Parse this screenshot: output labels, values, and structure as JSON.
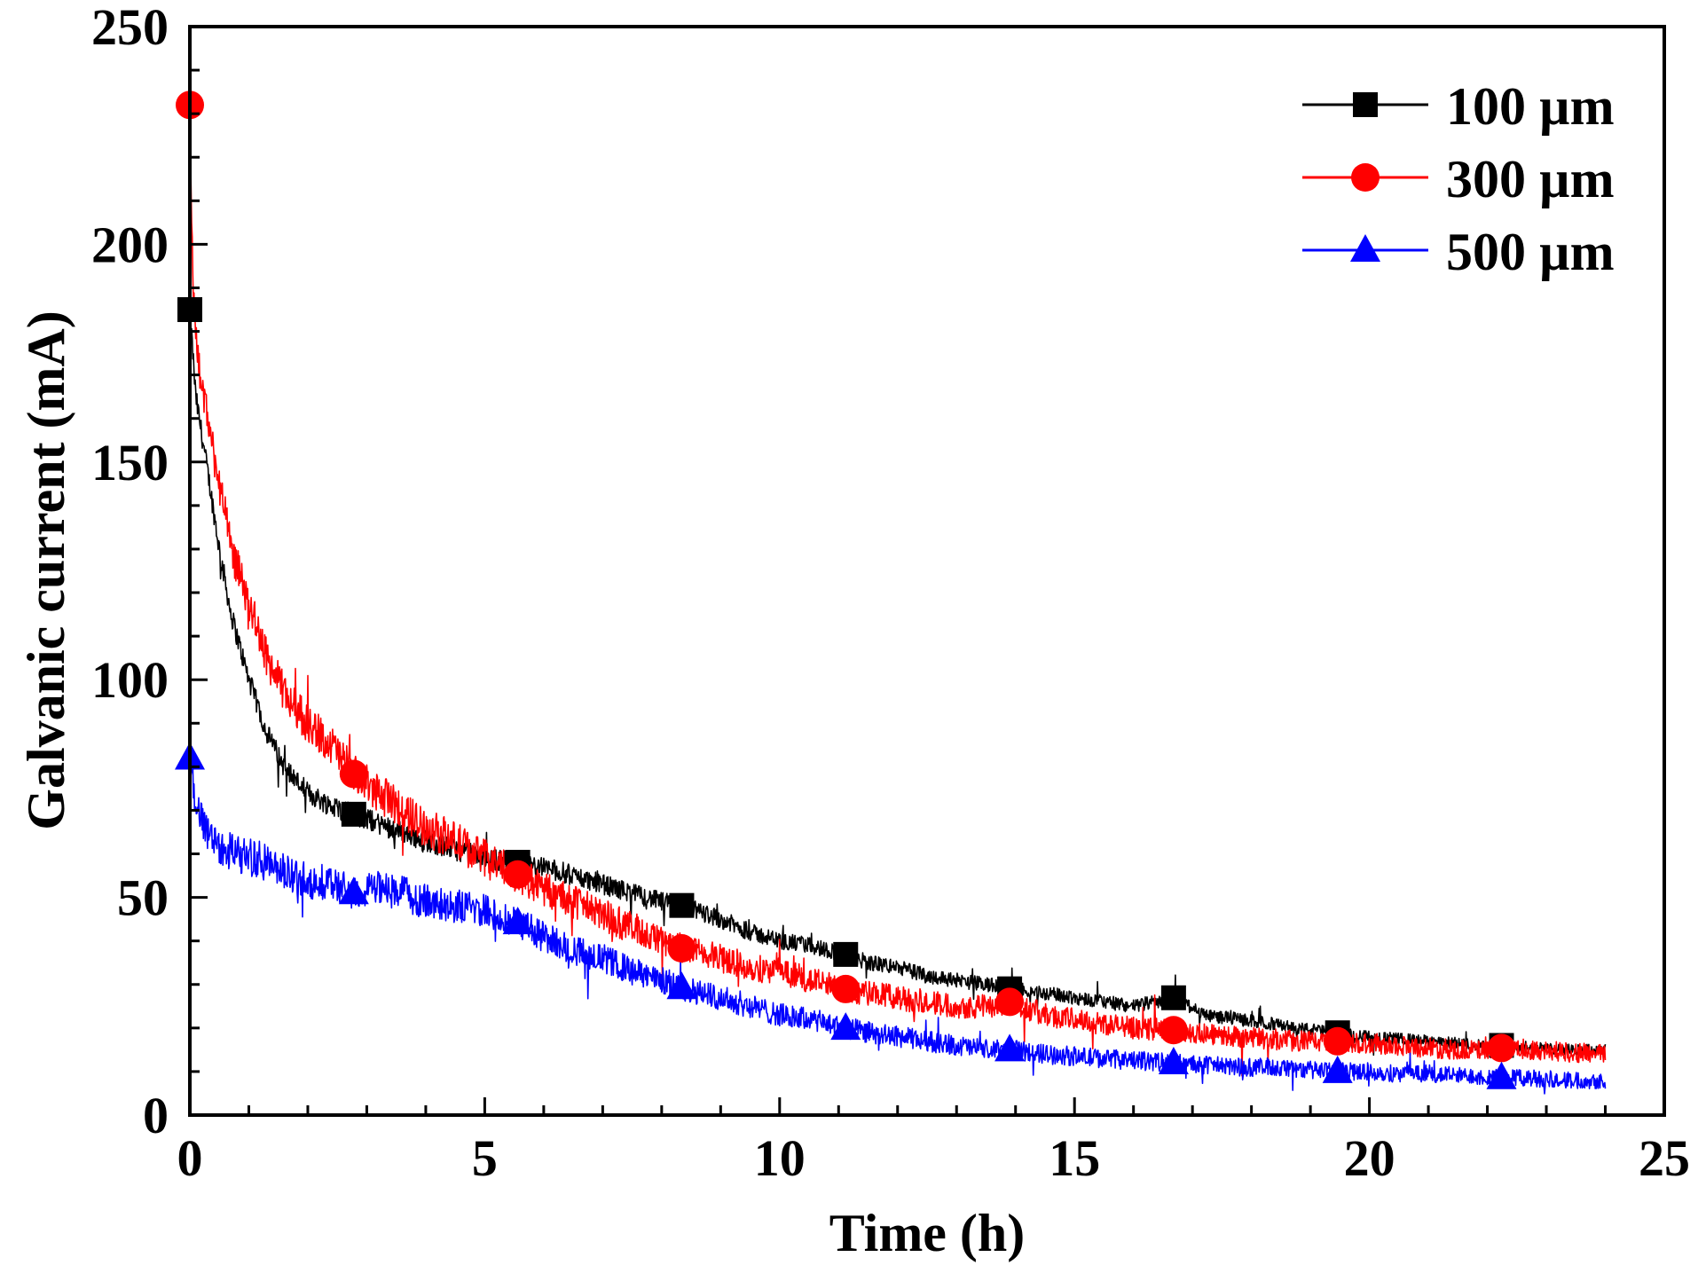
{
  "chart_data": {
    "type": "line",
    "title": "",
    "xlabel": "Time (h)",
    "ylabel": "Galvanic current (mA)",
    "xlim": [
      0,
      25
    ],
    "ylim": [
      0,
      250
    ],
    "xticks": [
      0,
      5,
      10,
      15,
      20,
      25
    ],
    "yticks": [
      0,
      50,
      100,
      150,
      200,
      250
    ],
    "xtick_labels": [
      "0",
      "5",
      "10",
      "15",
      "20",
      "25"
    ],
    "ytick_labels": [
      "0",
      "50",
      "100",
      "150",
      "200",
      "250"
    ],
    "grid": false,
    "legend_position": "top-right",
    "series": [
      {
        "name": "100 µm",
        "color": "#000000",
        "marker": "square",
        "x": [
          0,
          0.1,
          0.3,
          0.5,
          0.7,
          1.0,
          1.3,
          1.6,
          2.0,
          2.4,
          2.8,
          3.2,
          3.6,
          4.0,
          4.5,
          5.0,
          5.6,
          6.0,
          6.5,
          7.0,
          7.5,
          8.0,
          8.4,
          9.0,
          9.5,
          10.0,
          10.5,
          11.1,
          11.5,
          12.0,
          12.5,
          13.0,
          13.5,
          13.9,
          14.5,
          15.0,
          15.5,
          16.0,
          16.7,
          17.2,
          17.8,
          18.3,
          18.8,
          19.4,
          20.0,
          20.5,
          21.0,
          21.5,
          22.0,
          22.3,
          22.8,
          23.3,
          24.0
        ],
        "y": [
          185,
          165,
          148,
          130,
          115,
          100,
          88,
          80,
          74,
          71,
          69,
          67,
          65,
          63,
          61,
          59,
          58,
          57,
          55,
          53,
          51,
          49,
          48,
          45,
          42,
          40,
          39,
          37,
          35,
          34,
          32,
          31,
          30,
          29,
          28,
          27,
          26,
          25,
          27,
          23,
          22,
          21,
          20,
          19,
          18,
          17.5,
          17,
          16.5,
          16,
          16,
          15.5,
          15,
          15
        ]
      },
      {
        "name": "300 µm",
        "color": "#ff0000",
        "marker": "circle",
        "x": [
          0,
          0.05,
          0.15,
          0.3,
          0.5,
          0.7,
          1.0,
          1.3,
          1.6,
          2.0,
          2.4,
          2.8,
          3.2,
          3.6,
          4.0,
          4.5,
          5.0,
          5.6,
          6.0,
          6.5,
          7.0,
          7.5,
          8.0,
          8.4,
          9.0,
          9.5,
          10.0,
          10.5,
          11.1,
          11.5,
          12.0,
          12.5,
          13.0,
          13.5,
          13.9,
          14.5,
          15.0,
          15.5,
          16.0,
          16.7,
          17.2,
          17.8,
          18.3,
          18.8,
          19.4,
          20.0,
          20.5,
          21.0,
          21.5,
          22.0,
          22.3,
          22.8,
          23.3,
          24.0
        ],
        "y": [
          232,
          190,
          172,
          160,
          145,
          130,
          118,
          105,
          97,
          90,
          85,
          78,
          74,
          70,
          66,
          63,
          59,
          55,
          52,
          49,
          46,
          43,
          40,
          38,
          36,
          34,
          33,
          31,
          29,
          28,
          27,
          26,
          25,
          25,
          26,
          23,
          22,
          21,
          20,
          19.5,
          18.5,
          18,
          17.5,
          17,
          17,
          16.5,
          16,
          15.5,
          15,
          15,
          15.5,
          15,
          14.5,
          14
        ]
      },
      {
        "name": "500 µm",
        "color": "#0000ff",
        "marker": "triangle",
        "x": [
          0,
          0.1,
          0.3,
          0.5,
          0.8,
          1.1,
          1.4,
          1.7,
          2.0,
          2.4,
          2.8,
          3.2,
          3.6,
          4.0,
          4.5,
          5.0,
          5.6,
          6.0,
          6.5,
          7.0,
          7.5,
          8.0,
          8.4,
          9.0,
          9.5,
          10.0,
          10.5,
          11.1,
          11.5,
          12.0,
          12.5,
          13.0,
          13.5,
          13.9,
          14.5,
          15.0,
          15.5,
          16.0,
          16.7,
          17.2,
          17.8,
          18.3,
          18.8,
          19.4,
          20.0,
          20.5,
          21.0,
          21.5,
          22.0,
          22.3,
          22.8,
          23.3,
          24.0
        ],
        "y": [
          82,
          72,
          65,
          62,
          60,
          59,
          57,
          55,
          54,
          53,
          51,
          52,
          51,
          49,
          48,
          47,
          44,
          41,
          38,
          36,
          33,
          31,
          29,
          27,
          25,
          23,
          22,
          20,
          19,
          18,
          17,
          16,
          15,
          15,
          14,
          13.5,
          13,
          12.5,
          12,
          11.5,
          11,
          11,
          10.5,
          10,
          10,
          9.5,
          9.5,
          9,
          9,
          8.5,
          8.5,
          8,
          8
        ]
      }
    ]
  }
}
